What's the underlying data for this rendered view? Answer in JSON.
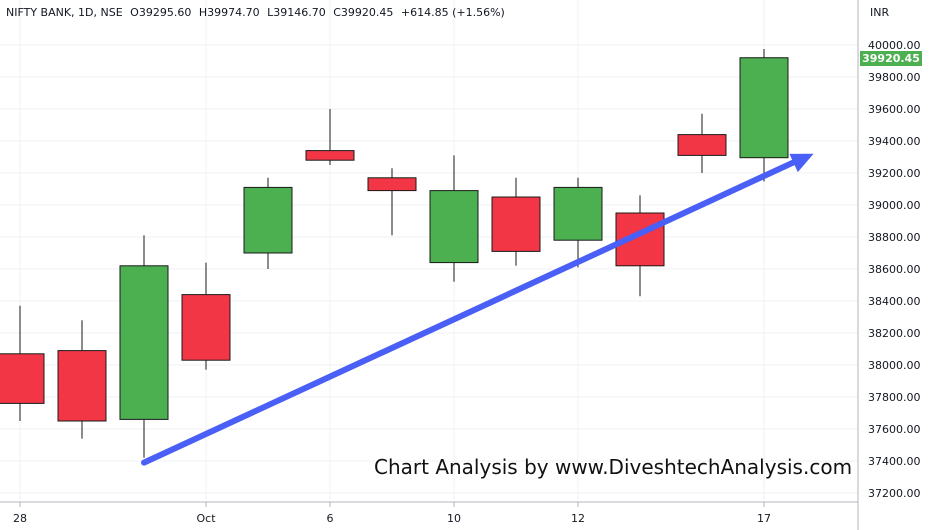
{
  "header": {
    "symbol": "NIFTY BANK, 1D, NSE",
    "open": "O39295.60",
    "high": "H39974.70",
    "low": "L39146.70",
    "close": "C39920.45",
    "change": "+614.85 (+1.56%)"
  },
  "currency_label": "INR",
  "last_price_label": "39920.45",
  "watermark": "Chart Analysis by www.DiveshtechAnalysis.com",
  "colors": {
    "up": "#4caf50",
    "down": "#f23645",
    "trend_arrow": "#4a5ff5",
    "grid": "#eef0f3",
    "axis_text": "#131722"
  },
  "chart_data": {
    "type": "candlestick",
    "ylim": [
      37100,
      40100
    ],
    "y_ticks": [
      "37200.00",
      "37400.00",
      "37600.00",
      "37800.00",
      "38000.00",
      "38200.00",
      "38400.00",
      "38600.00",
      "38800.00",
      "39000.00",
      "39200.00",
      "39400.00",
      "39600.00",
      "39800.00",
      "40000.00"
    ],
    "x_ticks": [
      "28",
      "Oct",
      "6",
      "10",
      "12",
      "17"
    ],
    "candles": [
      {
        "open": 38070,
        "high": 38370,
        "low": 37650,
        "close": 37760
      },
      {
        "open": 38090,
        "high": 38280,
        "low": 37540,
        "close": 37650
      },
      {
        "open": 37660,
        "high": 38810,
        "low": 37420,
        "close": 38620
      },
      {
        "open": 38440,
        "high": 38640,
        "low": 37970,
        "close": 38030
      },
      {
        "open": 38700,
        "high": 39170,
        "low": 38600,
        "close": 39110
      },
      {
        "open": 39340,
        "high": 39600,
        "low": 39250,
        "close": 39280
      },
      {
        "open": 39170,
        "high": 39230,
        "low": 38810,
        "close": 39090
      },
      {
        "open": 38640,
        "high": 39310,
        "low": 38520,
        "close": 39090
      },
      {
        "open": 39050,
        "high": 39170,
        "low": 38620,
        "close": 38710
      },
      {
        "open": 38780,
        "high": 39170,
        "low": 38610,
        "close": 39110
      },
      {
        "open": 38950,
        "high": 39060,
        "low": 38430,
        "close": 38620
      },
      {
        "open": 39440,
        "high": 39570,
        "low": 39200,
        "close": 39310
      },
      {
        "open": 39295.6,
        "high": 39974.7,
        "low": 39146.7,
        "close": 39920.45
      }
    ],
    "annotations": [
      {
        "type": "arrow",
        "from_index": 2,
        "from_price": 37390,
        "to_index": 12.8,
        "to_price": 39320
      }
    ]
  }
}
